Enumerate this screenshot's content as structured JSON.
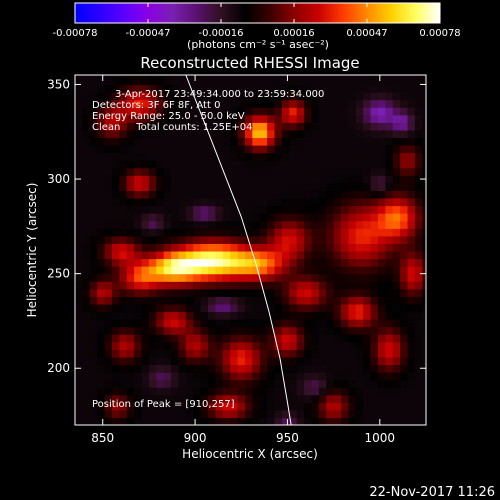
{
  "chart_data": {
    "type": "heatmap",
    "title": "Reconstructed RHESSI Image",
    "xlabel": "Heliocentric X (arcsec)",
    "ylabel": "Heliocentric Y (arcsec)",
    "xlim": [
      835,
      1025
    ],
    "ylim": [
      170,
      355
    ],
    "x_ticks": [
      850,
      900,
      950,
      1000
    ],
    "y_ticks": [
      200,
      250,
      300,
      350
    ],
    "colorbar": {
      "range": [
        -0.00078,
        0.00078
      ],
      "ticks": [
        "-0.00078",
        "-0.00047",
        "-0.00016",
        "0.00016",
        "0.00047",
        "0.00078"
      ],
      "units_label": "(photons cm⁻² s⁻¹ asec⁻²)"
    },
    "annotations": {
      "time": "3-Apr-2017 23:49:34.000 to 23:59:34.000",
      "detectors": "Detectors: 3F 6F 8F, Att 0",
      "energy": "Energy Range: 25.0 - 50.0 keV",
      "method": "Clean     Total counts: 1.25E+04",
      "peak": "Position of Peak = [910,257]"
    },
    "peak_position": [
      910,
      257
    ],
    "limb_arc": [
      [
        895,
        355
      ],
      [
        905,
        330
      ],
      [
        915,
        305
      ],
      [
        925,
        280
      ],
      [
        933,
        255
      ],
      [
        940,
        230
      ],
      [
        946,
        205
      ],
      [
        950,
        182
      ],
      [
        952,
        170
      ]
    ],
    "emission_sources": [
      {
        "x": 910,
        "y": 257,
        "value": 0.00078,
        "sx": 14,
        "sy": 7
      },
      {
        "x": 888,
        "y": 253,
        "value": 0.0006,
        "sx": 10,
        "sy": 6
      },
      {
        "x": 935,
        "y": 255,
        "value": 0.00045,
        "sx": 10,
        "sy": 6
      },
      {
        "x": 870,
        "y": 248,
        "value": 0.0004,
        "sx": 8,
        "sy": 6
      },
      {
        "x": 860,
        "y": 262,
        "value": 0.00035,
        "sx": 7,
        "sy": 5
      },
      {
        "x": 951,
        "y": 268,
        "value": 0.00035,
        "sx": 8,
        "sy": 8
      },
      {
        "x": 990,
        "y": 270,
        "value": 0.0004,
        "sx": 12,
        "sy": 12
      },
      {
        "x": 1010,
        "y": 280,
        "value": 0.00045,
        "sx": 8,
        "sy": 8
      },
      {
        "x": 935,
        "y": 325,
        "value": 0.00065,
        "sx": 6,
        "sy": 6
      },
      {
        "x": 953,
        "y": 335,
        "value": 0.0004,
        "sx": 5,
        "sy": 5
      },
      {
        "x": 870,
        "y": 340,
        "value": 0.0004,
        "sx": 8,
        "sy": 6
      },
      {
        "x": 855,
        "y": 330,
        "value": 0.0003,
        "sx": 6,
        "sy": 6
      },
      {
        "x": 870,
        "y": 298,
        "value": 0.00035,
        "sx": 6,
        "sy": 5
      },
      {
        "x": 960,
        "y": 240,
        "value": 0.00035,
        "sx": 8,
        "sy": 6
      },
      {
        "x": 988,
        "y": 230,
        "value": 0.0004,
        "sx": 7,
        "sy": 6
      },
      {
        "x": 1005,
        "y": 210,
        "value": 0.00035,
        "sx": 6,
        "sy": 8
      },
      {
        "x": 925,
        "y": 205,
        "value": 0.0004,
        "sx": 8,
        "sy": 8
      },
      {
        "x": 950,
        "y": 215,
        "value": 0.00035,
        "sx": 6,
        "sy": 6
      },
      {
        "x": 900,
        "y": 212,
        "value": 0.0003,
        "sx": 6,
        "sy": 6
      },
      {
        "x": 862,
        "y": 212,
        "value": 0.0003,
        "sx": 6,
        "sy": 6
      },
      {
        "x": 858,
        "y": 180,
        "value": 0.00025,
        "sx": 5,
        "sy": 5
      },
      {
        "x": 888,
        "y": 225,
        "value": 0.00035,
        "sx": 7,
        "sy": 5
      },
      {
        "x": 850,
        "y": 240,
        "value": 0.0003,
        "sx": 5,
        "sy": 5
      },
      {
        "x": 975,
        "y": 180,
        "value": 0.0003,
        "sx": 6,
        "sy": 6
      },
      {
        "x": 1018,
        "y": 250,
        "value": 0.00035,
        "sx": 5,
        "sy": 8
      },
      {
        "x": 1015,
        "y": 310,
        "value": 0.00025,
        "sx": 5,
        "sy": 6
      },
      {
        "x": 918,
        "y": 180,
        "value": 0.00035,
        "sx": 8,
        "sy": 5
      }
    ],
    "negative_sources": [
      {
        "x": 1000,
        "y": 335,
        "value": -0.0003,
        "sx": 6,
        "sy": 5
      },
      {
        "x": 1012,
        "y": 330,
        "value": -0.00025,
        "sx": 4,
        "sy": 4
      },
      {
        "x": 905,
        "y": 282,
        "value": -0.0002,
        "sx": 5,
        "sy": 3
      },
      {
        "x": 915,
        "y": 233,
        "value": -0.0002,
        "sx": 6,
        "sy": 3
      },
      {
        "x": 877,
        "y": 277,
        "value": -0.00015,
        "sx": 4,
        "sy": 3
      },
      {
        "x": 965,
        "y": 190,
        "value": -0.00015,
        "sx": 5,
        "sy": 4
      },
      {
        "x": 950,
        "y": 172,
        "value": -0.00015,
        "sx": 4,
        "sy": 3
      },
      {
        "x": 882,
        "y": 195,
        "value": -0.00015,
        "sx": 5,
        "sy": 4
      },
      {
        "x": 1000,
        "y": 297,
        "value": -0.00015,
        "sx": 4,
        "sy": 4
      }
    ],
    "background_value": -8e-05,
    "colors": {
      "colormap": [
        "#0000ff",
        "#2a00ff",
        "#5a00ff",
        "#8a00e6",
        "#7a20b0",
        "#5a1070",
        "#301020",
        "#000000",
        "#3a0000",
        "#8a0000",
        "#c80000",
        "#ff3a00",
        "#ff8a00",
        "#ffd000",
        "#ffff60",
        "#ffffff"
      ],
      "limb": "#ffffff"
    }
  },
  "footer": {
    "timestamp": "22-Nov-2017 11:26"
  }
}
